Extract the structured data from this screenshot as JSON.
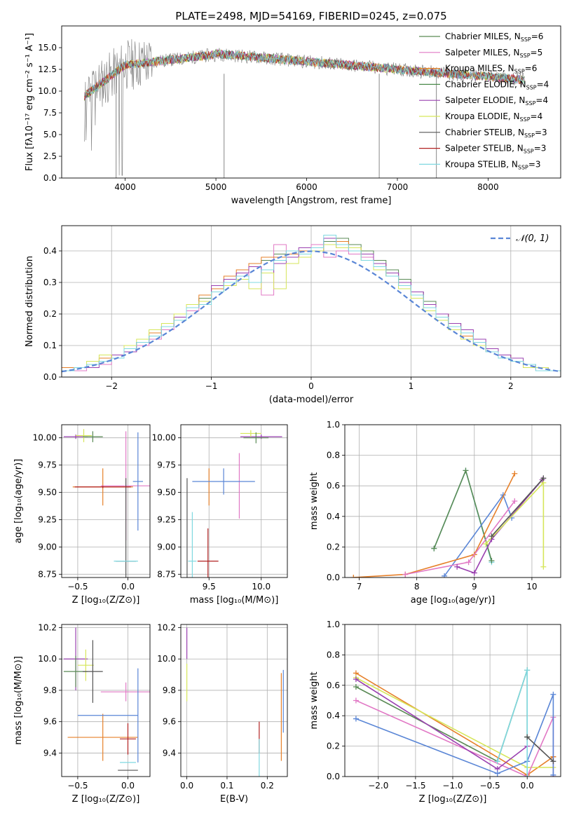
{
  "figure": {
    "title": "PLATE=2498, MJD=54169, FIBERID=0245, z=0.075"
  },
  "chart_data": [
    {
      "id": "spectrum",
      "type": "line",
      "xlabel": "wavelength [Angstrom, rest frame]",
      "ylabel": "Flux [fλ10⁻¹⁷ erg cm⁻² s⁻¹ A⁻¹]",
      "xlim": [
        3300,
        8800
      ],
      "ylim": [
        0,
        17.5
      ],
      "xticks": [
        4000,
        5000,
        6000,
        7000,
        8000
      ],
      "yticks": [
        0.0,
        2.5,
        5.0,
        7.5,
        10.0,
        12.5,
        15.0
      ],
      "grid": false,
      "legend_position": "top-right",
      "series": [
        {
          "name": "Chabrier MILES, N_SSP=6",
          "color": "#5a8a55"
        },
        {
          "name": "Salpeter MILES, N_SSP=5",
          "color": "#e178c5"
        },
        {
          "name": "Kroupa MILES, N_SSP=6",
          "color": "#e6802a"
        },
        {
          "name": "Chabrier ELODIE, N_SSP=4",
          "color": "#4a8a4a"
        },
        {
          "name": "Salpeter ELODIE, N_SSP=4",
          "color": "#9a40b0"
        },
        {
          "name": "Kroupa ELODIE, N_SSP=4",
          "color": "#d6e65a"
        },
        {
          "name": "Chabrier STELIB, N_SSP=3",
          "color": "#555555"
        },
        {
          "name": "Salpeter STELIB, N_SSP=3",
          "color": "#b22222"
        },
        {
          "name": "Kroupa STELIB, N_SSP=3",
          "color": "#7fd8e0"
        }
      ],
      "data_gray": {
        "name": "data",
        "color": "#888888"
      }
    },
    {
      "id": "residuals",
      "type": "line",
      "xlabel": "(data-model)/error",
      "ylabel": "Normed distribution",
      "xlim": [
        -2.5,
        2.5
      ],
      "ylim": [
        0,
        0.48
      ],
      "xticks": [
        -2,
        -1,
        0,
        1,
        2
      ],
      "yticks": [
        0.0,
        0.1,
        0.2,
        0.3,
        0.4
      ],
      "grid": true,
      "legend": "𝒩(0, 1)",
      "legend_position": "top-right",
      "gaussian": {
        "mu": 0,
        "sigma": 1,
        "color": "#5a86d6"
      },
      "bin_edges_range": [
        -2.5,
        2.5
      ],
      "hist_series": [
        {
          "color": "#5a8a55",
          "values": [
            0.02,
            0.03,
            0.04,
            0.05,
            0.07,
            0.09,
            0.11,
            0.13,
            0.16,
            0.19,
            0.22,
            0.25,
            0.28,
            0.31,
            0.33,
            0.36,
            0.37,
            0.39,
            0.4,
            0.39,
            0.41,
            0.43,
            0.44,
            0.42,
            0.4,
            0.37,
            0.34,
            0.31,
            0.27,
            0.24,
            0.2,
            0.17,
            0.14,
            0.11,
            0.09,
            0.07,
            0.05,
            0.04,
            0.03,
            0.02
          ]
        },
        {
          "color": "#e178c5",
          "values": [
            0.02,
            0.02,
            0.04,
            0.04,
            0.06,
            0.08,
            0.1,
            0.12,
            0.15,
            0.18,
            0.21,
            0.24,
            0.27,
            0.3,
            0.32,
            0.35,
            0.26,
            0.42,
            0.38,
            0.4,
            0.42,
            0.38,
            0.4,
            0.39,
            0.38,
            0.35,
            0.33,
            0.29,
            0.25,
            0.22,
            0.19,
            0.16,
            0.13,
            0.1,
            0.08,
            0.06,
            0.05,
            0.03,
            0.02,
            0.02
          ]
        },
        {
          "color": "#e6802a",
          "values": [
            0.03,
            0.03,
            0.04,
            0.06,
            0.07,
            0.09,
            0.11,
            0.14,
            0.16,
            0.19,
            0.22,
            0.26,
            0.28,
            0.32,
            0.34,
            0.36,
            0.38,
            0.38,
            0.39,
            0.4,
            0.41,
            0.42,
            0.43,
            0.41,
            0.39,
            0.36,
            0.32,
            0.29,
            0.26,
            0.23,
            0.2,
            0.16,
            0.13,
            0.11,
            0.09,
            0.07,
            0.05,
            0.04,
            0.03,
            0.02
          ]
        },
        {
          "color": "#9a40b0",
          "values": [
            0.02,
            0.03,
            0.03,
            0.05,
            0.07,
            0.08,
            0.11,
            0.13,
            0.16,
            0.19,
            0.22,
            0.24,
            0.29,
            0.31,
            0.33,
            0.35,
            0.33,
            0.36,
            0.38,
            0.41,
            0.4,
            0.44,
            0.41,
            0.4,
            0.39,
            0.36,
            0.33,
            0.3,
            0.27,
            0.23,
            0.2,
            0.17,
            0.15,
            0.12,
            0.09,
            0.07,
            0.06,
            0.04,
            0.03,
            0.02
          ]
        },
        {
          "color": "#d6e65a",
          "values": [
            0.02,
            0.03,
            0.05,
            0.07,
            0.06,
            0.1,
            0.12,
            0.15,
            0.17,
            0.2,
            0.23,
            0.24,
            0.27,
            0.29,
            0.31,
            0.28,
            0.33,
            0.28,
            0.36,
            0.38,
            0.4,
            0.42,
            0.41,
            0.41,
            0.37,
            0.34,
            0.32,
            0.28,
            0.25,
            0.21,
            0.18,
            0.15,
            0.12,
            0.1,
            0.08,
            0.06,
            0.05,
            0.03,
            0.03,
            0.02
          ]
        },
        {
          "color": "#7fd8e0",
          "values": [
            0.02,
            0.03,
            0.04,
            0.05,
            0.06,
            0.09,
            0.11,
            0.13,
            0.16,
            0.18,
            0.22,
            0.23,
            0.27,
            0.3,
            0.32,
            0.3,
            0.34,
            0.37,
            0.4,
            0.39,
            0.41,
            0.45,
            0.42,
            0.4,
            0.37,
            0.35,
            0.32,
            0.29,
            0.26,
            0.22,
            0.19,
            0.16,
            0.14,
            0.11,
            0.08,
            0.06,
            0.05,
            0.04,
            0.02,
            0.02
          ]
        }
      ]
    },
    {
      "id": "age-vs-Z",
      "type": "scatter",
      "xlabel": "Z [log₁₀(Z/Z⊙)]",
      "ylabel": "age  [log₁₀(age/yr)]",
      "xlim": [
        -0.66,
        0.22
      ],
      "ylim": [
        8.72,
        10.12
      ],
      "xticks": [
        -0.5,
        0.0
      ],
      "yticks": [
        8.75,
        9.0,
        9.25,
        9.5,
        9.75,
        10.0,
        10.25
      ],
      "ytick_labels": [
        "8.75",
        "9.00",
        "9.25",
        "9.50",
        "9.75",
        "10.00",
        ""
      ],
      "grid": true,
      "points": [
        {
          "x": -0.52,
          "y": 10.01,
          "xerr": 0.12,
          "yerr": 0.02,
          "color": "#9a40b0"
        },
        {
          "x": -0.44,
          "y": 10.02,
          "xerr": 0.08,
          "yerr": 0.06,
          "color": "#d6e65a"
        },
        {
          "x": -0.35,
          "y": 10.01,
          "xerr": 0.1,
          "yerr": 0.05,
          "color": "#5a8a55"
        },
        {
          "x": -0.25,
          "y": 9.55,
          "xerr": 0.3,
          "yerr": 0.17,
          "color": "#e6802a"
        },
        {
          "x": -0.02,
          "y": 9.56,
          "xerr": 0.25,
          "yerr": 0.5,
          "color": "#e178c5"
        },
        {
          "x": 0.1,
          "y": 9.6,
          "xerr": 0.05,
          "yerr": 0.45,
          "color": "#5a86d6"
        },
        {
          "x": -0.02,
          "y": 8.87,
          "xerr": 0.1,
          "yerr": 0.76,
          "color": "#555555"
        },
        {
          "x": -0.25,
          "y": 9.55,
          "xerr": 0.28,
          "yerr": 0.01,
          "color": "#b22222"
        },
        {
          "x": -0.02,
          "y": 8.87,
          "xerr": 0.12,
          "yerr": 0.0,
          "color": "#7fd8e0"
        }
      ]
    },
    {
      "id": "age-vs-mass",
      "type": "scatter",
      "xlabel": "mass [log₁₀(M/M⊙)]",
      "xlim": [
        9.23,
        10.25
      ],
      "ylim": [
        8.72,
        10.12
      ],
      "xticks": [
        9.5,
        10.0
      ],
      "yticks": [
        8.75,
        9.0,
        9.25,
        9.5,
        9.75,
        10.0
      ],
      "ytick_labels": [
        "8.75",
        "9.00",
        "9.25",
        "9.50",
        "9.75",
        "10.00"
      ],
      "grid": true,
      "points": [
        {
          "x": 10.0,
          "y": 10.01,
          "xerr": 0.2,
          "yerr": 0.02,
          "color": "#9a40b0"
        },
        {
          "x": 9.9,
          "y": 10.04,
          "xerr": 0.1,
          "yerr": 0.03,
          "color": "#d6e65a"
        },
        {
          "x": 9.95,
          "y": 10.0,
          "xerr": 0.12,
          "yerr": 0.05,
          "color": "#5a8a55"
        },
        {
          "x": 9.5,
          "y": 9.55,
          "xerr": 0.0,
          "yerr": 0.17,
          "color": "#e6802a"
        },
        {
          "x": 9.79,
          "y": 9.56,
          "xerr": 0.0,
          "yerr": 0.3,
          "color": "#e178c5"
        },
        {
          "x": 9.64,
          "y": 9.6,
          "xerr": 0.3,
          "yerr": 0.12,
          "color": "#5a86d6"
        },
        {
          "x": 9.29,
          "y": 8.87,
          "xerr": 0.0,
          "yerr": 0.76,
          "color": "#555555"
        },
        {
          "x": 9.49,
          "y": 8.87,
          "xerr": 0.1,
          "yerr": 0.3,
          "color": "#b22222"
        },
        {
          "x": 9.34,
          "y": 8.87,
          "xerr": 0.04,
          "yerr": 0.45,
          "color": "#7fd8e0"
        }
      ]
    },
    {
      "id": "weight-vs-age",
      "type": "line",
      "xlabel": "age  [log₁₀(age/yr)]",
      "ylabel": "mass weight",
      "xlim": [
        6.75,
        10.5
      ],
      "ylim": [
        0,
        1.0
      ],
      "xticks": [
        7,
        8,
        9,
        10
      ],
      "yticks": [
        0.0,
        0.2,
        0.4,
        0.6,
        0.8,
        1.0
      ],
      "grid": true,
      "series": [
        {
          "color": "#7fd8e0",
          "x": [
            8.3,
            8.85,
            9.3
          ],
          "y": [
            0.19,
            0.7,
            0.1
          ]
        },
        {
          "color": "#5a8a55",
          "x": [
            8.3,
            8.85,
            9.3
          ],
          "y": [
            0.19,
            0.7,
            0.11
          ]
        },
        {
          "color": "#5a86d6",
          "x": [
            8.48,
            9.5,
            9.65
          ],
          "y": [
            0.01,
            0.54,
            0.39
          ]
        },
        {
          "color": "#e6802a",
          "x": [
            6.9,
            7.8,
            9.0,
            9.7
          ],
          "y": [
            0.0,
            0.02,
            0.15,
            0.68
          ]
        },
        {
          "color": "#e178c5",
          "x": [
            7.8,
            8.9,
            9.7
          ],
          "y": [
            0.02,
            0.1,
            0.5
          ]
        },
        {
          "color": "#9a40b0",
          "x": [
            8.7,
            9.0,
            9.3,
            10.18
          ],
          "y": [
            0.07,
            0.03,
            0.25,
            0.64
          ]
        },
        {
          "color": "#d6e65a",
          "x": [
            9.2,
            10.2,
            10.2
          ],
          "y": [
            0.22,
            0.62,
            0.07
          ]
        },
        {
          "color": "#555555",
          "x": [
            9.3,
            10.2
          ],
          "y": [
            0.27,
            0.65
          ]
        }
      ]
    },
    {
      "id": "mass-vs-Z",
      "type": "scatter",
      "xlabel": "Z [log₁₀(Z/Z⊙)]",
      "ylabel": "mass [log₁₀(M/M⊙)]",
      "xlim": [
        -0.66,
        0.22
      ],
      "ylim": [
        9.25,
        10.22
      ],
      "xticks": [
        -0.5,
        0.0
      ],
      "yticks": [
        9.4,
        9.6,
        9.8,
        10.0,
        10.2
      ],
      "grid": true,
      "points": [
        {
          "x": -0.52,
          "y": 10.0,
          "xerr": 0.12,
          "yerr": 0.2,
          "color": "#9a40b0"
        },
        {
          "x": -0.42,
          "y": 9.96,
          "xerr": 0.08,
          "yerr": 0.1,
          "color": "#d6e65a"
        },
        {
          "x": -0.52,
          "y": 9.92,
          "xerr": 0.12,
          "yerr": 0.1,
          "color": "#5a8a55"
        },
        {
          "x": -0.35,
          "y": 9.92,
          "xerr": 0.1,
          "yerr": 0.2,
          "color": "#555555"
        },
        {
          "x": -0.25,
          "y": 9.5,
          "xerr": 0.35,
          "yerr": 0.15,
          "color": "#e6802a"
        },
        {
          "x": -0.02,
          "y": 9.79,
          "xerr": 0.25,
          "yerr": 0.06,
          "color": "#e178c5"
        },
        {
          "x": -0.2,
          "y": 9.64,
          "xerr": 0.3,
          "yerr": 0.0,
          "color": "#5a86d6"
        },
        {
          "x": 0.1,
          "y": 9.64,
          "xerr": 0.0,
          "yerr": 0.3,
          "color": "#5a86d6"
        },
        {
          "x": 0.0,
          "y": 9.49,
          "xerr": 0.08,
          "yerr": 0.1,
          "color": "#b22222"
        },
        {
          "x": 0.0,
          "y": 9.29,
          "xerr": 0.1,
          "yerr": 0.0,
          "color": "#555555"
        },
        {
          "x": 0.0,
          "y": 9.34,
          "xerr": 0.08,
          "yerr": 0.0,
          "color": "#7fd8e0"
        }
      ]
    },
    {
      "id": "mass-vs-ebv",
      "type": "scatter",
      "xlabel": "E(B-V)",
      "xlim": [
        -0.015,
        0.25
      ],
      "ylim": [
        9.25,
        10.22
      ],
      "xticks": [
        0.0,
        0.1,
        0.2
      ],
      "yticks": [
        9.4,
        9.6,
        9.8,
        10.0,
        10.2
      ],
      "grid": true,
      "points": [
        {
          "x": 0.0,
          "y": 10.1,
          "xerr": 0.0,
          "yerr": 0.1,
          "color": "#9a40b0"
        },
        {
          "x": 0.0,
          "y": 9.85,
          "xerr": 0.0,
          "yerr": 0.12,
          "color": "#d6e65a"
        },
        {
          "x": 0.18,
          "y": 9.5,
          "xerr": 0.0,
          "yerr": 0.1,
          "color": "#b22222"
        },
        {
          "x": 0.18,
          "y": 9.36,
          "xerr": 0.0,
          "yerr": 0.13,
          "color": "#7fd8e0"
        },
        {
          "x": 0.24,
          "y": 9.73,
          "xerr": 0.0,
          "yerr": 0.2,
          "color": "#5a86d6"
        },
        {
          "x": 0.235,
          "y": 9.63,
          "xerr": 0.0,
          "yerr": 0.28,
          "color": "#e6802a"
        }
      ]
    },
    {
      "id": "weight-vs-Z",
      "type": "line",
      "xlabel": "Z [log₁₀(Z/Z⊙)]",
      "ylabel": "mass weight",
      "xlim": [
        -2.45,
        0.45
      ],
      "ylim": [
        0,
        1.0
      ],
      "xticks": [
        -2.0,
        -1.5,
        -1.0,
        -0.5,
        0.0
      ],
      "xtick_labels": [
        "−2.0",
        "−1.5",
        "−1.0",
        "−0.5",
        "0.0"
      ],
      "yticks": [
        0.0,
        0.2,
        0.4,
        0.6,
        0.8,
        1.0
      ],
      "grid": true,
      "series": [
        {
          "color": "#e6802a",
          "x": [
            -2.3,
            0.0,
            0.35,
            0.35
          ],
          "y": [
            0.68,
            0.01,
            0.13,
            0.13
          ]
        },
        {
          "color": "#5a8a55",
          "x": [
            -2.3,
            -0.4,
            0.0,
            0.0
          ],
          "y": [
            0.59,
            0.1,
            0.7,
            0.26
          ]
        },
        {
          "color": "#d6e65a",
          "x": [
            -2.3,
            0.0,
            0.35
          ],
          "y": [
            0.65,
            0.06,
            0.06
          ]
        },
        {
          "color": "#e178c5",
          "x": [
            -2.3,
            0.0,
            0.35,
            0.35
          ],
          "y": [
            0.5,
            0.0,
            0.39,
            0.0
          ]
        },
        {
          "color": "#9a40b0",
          "x": [
            -2.3,
            -0.4,
            0.0
          ],
          "y": [
            0.64,
            0.05,
            0.2
          ]
        },
        {
          "color": "#5a86d6",
          "x": [
            -2.3,
            -0.4,
            0.0,
            0.35,
            0.35
          ],
          "y": [
            0.38,
            0.02,
            0.1,
            0.54,
            0.01
          ]
        },
        {
          "color": "#7fd8e0",
          "x": [
            -0.4,
            0.0,
            0.0
          ],
          "y": [
            0.1,
            0.7,
            0.0
          ]
        },
        {
          "color": "#555555",
          "x": [
            0.0,
            0.35
          ],
          "y": [
            0.26,
            0.1
          ]
        }
      ]
    }
  ]
}
